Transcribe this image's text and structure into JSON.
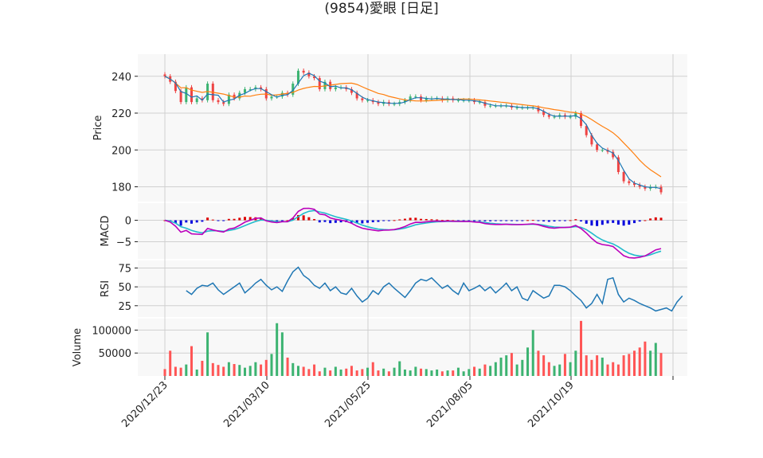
{
  "chart_data": {
    "type": "candlestick",
    "title": "(9854)愛眼 [日足]",
    "x_ticks": [
      "2020/12/23",
      "2021/03/10",
      "2021/05/25",
      "2021/08/05",
      "2021/10/19"
    ],
    "panels": [
      {
        "id": "price",
        "ylabel": "Price",
        "ylim": [
          172,
          252
        ],
        "yticks": [
          180,
          200,
          220,
          240
        ],
        "series": [
          {
            "kind": "candles",
            "close": [
              240,
              237,
              232,
              226,
              234,
              226,
              228,
              227,
              236,
              227,
              226,
              225,
              230,
              228,
              231,
              233,
              233,
              234,
              233,
              228,
              229,
              229,
              231,
              230,
              236,
              243,
              242,
              240,
              239,
              233,
              237,
              233,
              234,
              234,
              233,
              231,
              228,
              227,
              227,
              226,
              225,
              226,
              225,
              225,
              226,
              227,
              229,
              229,
              227,
              228,
              228,
              228,
              227,
              228,
              227,
              227,
              227,
              227,
              226,
              226,
              224,
              224,
              224,
              224,
              224,
              223,
              223,
              223,
              223,
              223,
              221,
              219,
              218,
              218,
              219,
              218,
              218,
              220,
              213,
              208,
              203,
              200,
              200,
              199,
              196,
              188,
              183,
              182,
              181,
              180,
              179,
              180,
              180,
              177
            ]
          },
          {
            "kind": "line",
            "role": "short-ma",
            "color": "#1f77b4"
          },
          {
            "kind": "line",
            "role": "long-ma",
            "color": "#ff7f0e"
          }
        ]
      },
      {
        "id": "macd",
        "ylabel": "MACD",
        "ylim": [
          -9,
          4
        ],
        "yticks": [
          0,
          -5
        ],
        "hist_colors": {
          "up": "#dd0000",
          "down": "#0000dd"
        },
        "line_colors": {
          "macd": "#bb00bb",
          "signal": "#22bbcc"
        }
      },
      {
        "id": "rsi",
        "ylabel": "RSI",
        "ylim": [
          10,
          85
        ],
        "yticks": [
          75,
          50,
          25
        ],
        "color": "#1f77b4",
        "values": [
          45,
          40,
          48,
          52,
          51,
          55,
          46,
          40,
          45,
          50,
          55,
          42,
          48,
          55,
          60,
          52,
          46,
          50,
          44,
          58,
          70,
          76,
          65,
          60,
          52,
          48,
          55,
          45,
          50,
          42,
          40,
          48,
          38,
          30,
          35,
          45,
          40,
          50,
          55,
          48,
          42,
          36,
          45,
          55,
          60,
          58,
          62,
          55,
          48,
          52,
          45,
          40,
          55,
          45,
          48,
          52,
          45,
          50,
          42,
          48,
          55,
          45,
          50,
          35,
          32,
          45,
          40,
          35,
          38,
          52,
          52,
          50,
          45,
          38,
          32,
          22,
          28,
          40,
          28,
          60,
          62,
          40,
          30,
          35,
          32,
          28,
          25,
          22,
          18,
          20,
          22,
          18,
          30,
          38
        ]
      },
      {
        "id": "volume",
        "ylabel": "Volume",
        "ylim": [
          0,
          125000
        ],
        "yticks": [
          50000,
          100000
        ],
        "colors": {
          "up": "#3cb371",
          "down": "#ff5555"
        },
        "values": [
          15000,
          55000,
          20000,
          18000,
          25000,
          65000,
          14000,
          33000,
          95000,
          28000,
          24000,
          20000,
          30000,
          26000,
          24000,
          18000,
          22000,
          30000,
          25000,
          35000,
          48000,
          115000,
          95000,
          40000,
          28000,
          22000,
          20000,
          15000,
          25000,
          10000,
          18000,
          12000,
          20000,
          14000,
          16000,
          22000,
          12000,
          15000,
          18000,
          30000,
          12000,
          16000,
          10000,
          18000,
          32000,
          14000,
          12000,
          20000,
          16000,
          15000,
          12000,
          14000,
          10000,
          12000,
          12000,
          18000,
          10000,
          15000,
          20000,
          16000,
          25000,
          22000,
          30000,
          40000,
          45000,
          50000,
          25000,
          35000,
          62000,
          100000,
          55000,
          45000,
          30000,
          22000,
          25000,
          48000,
          30000,
          55000,
          120000,
          45000,
          35000,
          45000,
          40000,
          25000,
          30000,
          25000,
          45000,
          48000,
          55000,
          62000,
          75000,
          55000,
          72000,
          50000
        ]
      }
    ]
  }
}
